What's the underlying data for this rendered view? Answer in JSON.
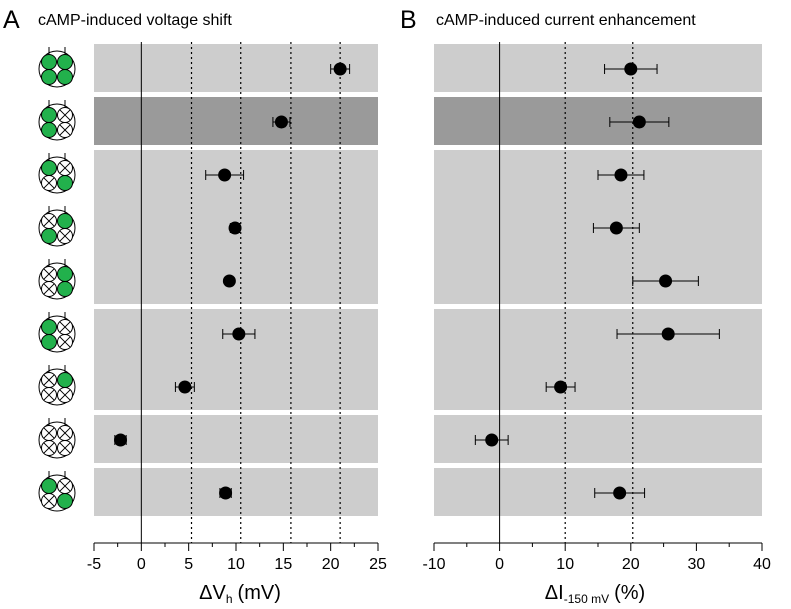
{
  "chart_data": [
    {
      "type": "scatter",
      "panel": "A",
      "title": "cAMP-induced voltage shift",
      "xlabel_symbol": "ΔV",
      "xlabel_sub": "h",
      "xlabel_unit": "(mV)",
      "xlim": [
        -5,
        25
      ],
      "xticks": [
        -5,
        0,
        5,
        10,
        15,
        20,
        25
      ],
      "dotted_lines": [
        5.3,
        10.5,
        15.8,
        21
      ],
      "grid": "dotted vertical reference lines",
      "points": [
        {
          "x": 21.0,
          "err": 1.0
        },
        {
          "x": 14.8,
          "err": 0.9
        },
        {
          "x": 8.8,
          "err": 2.0
        },
        {
          "x": 9.9,
          "err": 0.5
        },
        {
          "x": 9.3,
          "err": 0.3
        },
        {
          "x": 10.3,
          "err": 1.7
        },
        {
          "x": 4.6,
          "err": 1.0
        },
        {
          "x": -2.2,
          "err": 0.6
        },
        {
          "x": 8.9,
          "err": 0.6
        }
      ]
    },
    {
      "type": "scatter",
      "panel": "B",
      "title": "cAMP-induced current enhancement",
      "xlabel_symbol": "ΔI",
      "xlabel_sub": "-150 mV",
      "xlabel_unit": "(%)",
      "xlim": [
        -10,
        40
      ],
      "xticks": [
        -10,
        0,
        10,
        20,
        30,
        40
      ],
      "dotted_lines": [
        10,
        20.3
      ],
      "grid": "dotted vertical reference lines",
      "points": [
        {
          "x": 20.0,
          "err": 4.0
        },
        {
          "x": 21.3,
          "err": 4.5
        },
        {
          "x": 18.5,
          "err": 3.5
        },
        {
          "x": 17.8,
          "err": 3.5
        },
        {
          "x": 25.3,
          "err": 5.0
        },
        {
          "x": 25.7,
          "err": 7.8
        },
        {
          "x": 9.3,
          "err": 2.2
        },
        {
          "x": -1.2,
          "err": 2.5
        },
        {
          "x": 18.3,
          "err": 3.8
        }
      ]
    }
  ],
  "row_shading": [
    "light",
    "dark",
    "light",
    "light",
    "light",
    "light",
    "dark",
    "light",
    "light"
  ],
  "row_groups": [
    1,
    1,
    3,
    2,
    1,
    1
  ],
  "subunit_configs": [
    [
      true,
      true,
      true,
      true
    ],
    [
      true,
      false,
      true,
      false
    ],
    [
      true,
      false,
      false,
      true
    ],
    [
      false,
      true,
      true,
      false
    ],
    [
      false,
      true,
      false,
      true
    ],
    [
      true,
      false,
      true,
      false
    ],
    [
      false,
      true,
      false,
      false
    ],
    [
      false,
      false,
      false,
      false
    ],
    [
      true,
      false,
      false,
      true
    ]
  ],
  "colors": {
    "band_light": "#cdcdcd",
    "band_dark": "#9a9a9a",
    "subunit_active": "#22b14c",
    "marker": "#000000"
  },
  "icons": {
    "active_subunit": "green-filled-circle",
    "inactive_subunit": "crossed-circle"
  }
}
